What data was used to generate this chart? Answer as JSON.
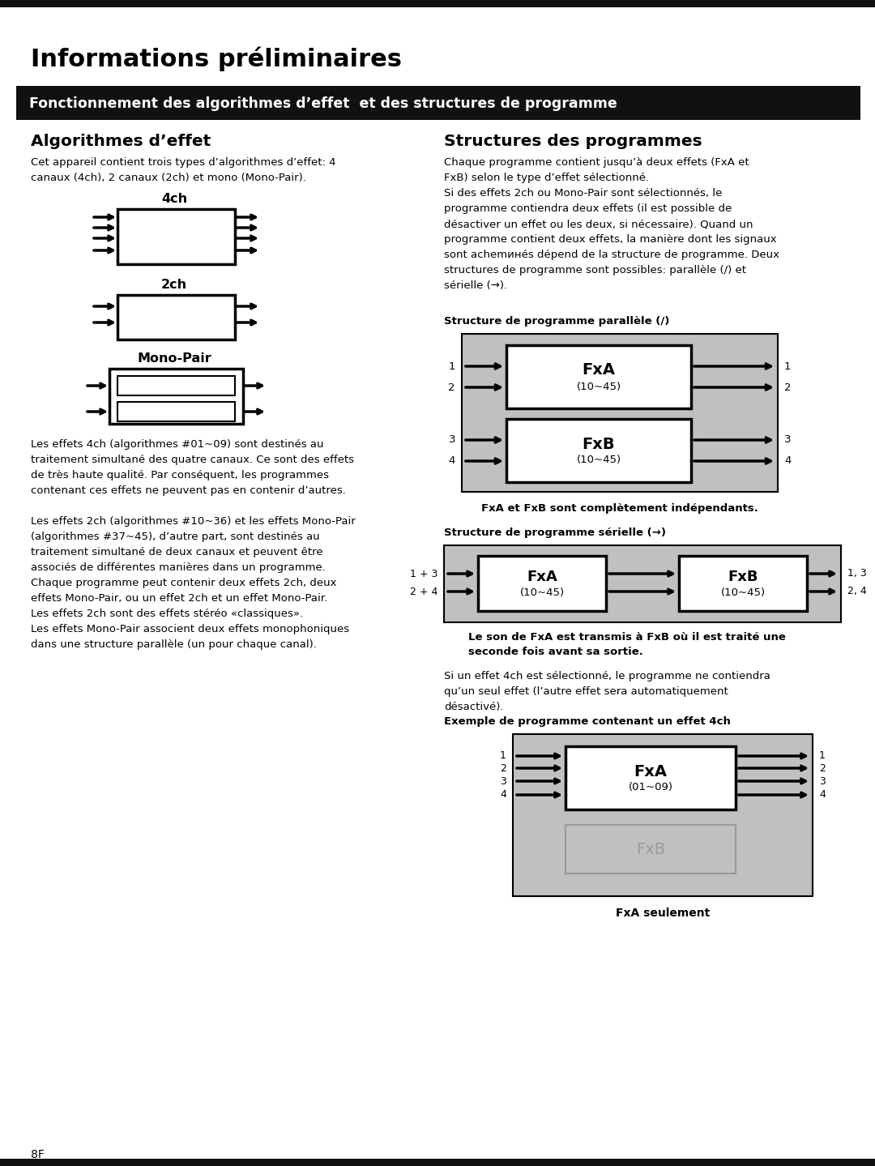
{
  "page_bg": "#ffffff",
  "top_bar_color": "#111111",
  "section_bar_color": "#111111",
  "gray_box": "#c0c0c0",
  "title_text": "Informations préliminaires",
  "section_title": "Fonctionnement des algorithmes d’effet  et des structures de programme",
  "left_heading": "Algorithmes d’effet",
  "right_heading": "Structures des programmes",
  "left_body1": "Cet appareil contient trois types d’algorithmes d’effet: 4\ncanaux (4ch), 2 canaux (2ch) et mono (Mono-Pair).",
  "diagram_4ch": "4ch",
  "diagram_2ch": "2ch",
  "diagram_monopair": "Mono-Pair",
  "left_body2": "Les effets 4ch (algorithmes #01~09) sont destinés au\ntraitement simultané des quatre canaux. Ce sont des effets\nde très haute qualité. Par conséquent, les programmes\ncontenant ces effets ne peuvent pas en contenir d’autres.\n\nLes effets 2ch (algorithmes #10~36) et les effets Mono-Pair\n(algorithmes #37~45), d’autre part, sont destinés au\ntraitement simultané de deux canaux et peuvent être\nassociés de différentes manières dans un programme.\nChaque programme peut contenir deux effets 2ch, deux\neffets Mono-Pair, ou un effet 2ch et un effet Mono-Pair.\nLes effets 2ch sont des effets stéréo «classiques».\nLes effets Mono-Pair associent deux effets monophoniques\ndans une structure parallèle (un pour chaque canal).",
  "right_body1": "Chaque programme contient jusqu’à deux effets (FxA et\nFxB) selon le type d’effet sélectionné.\nSi des effets 2ch ou Mono-Pair sont sélectionnés, le\nprogramme contiendra deux effets (il est possible de\ndésactiver un effet ou les deux, si nécessaire). Quand un\nprogramme contient deux effets, la manière dont les signaux\nsont achemинés dépend de la structure de programme. Deux\nstructures de programme sont possibles: parallèle (/) et\nsérielle (→).",
  "parallel_label": "Structure de programme parallèle (/)",
  "parallel_caption": "FxA et FxB sont complètement indépendants.",
  "serial_label": "Structure de programme sérielle (→)",
  "serial_caption": "Le son de FxA est transmis à FxB où il est traité une\nseconde fois avant sa sortie.",
  "right_body2": "Si un effet 4ch est sélectionné, le programme ne contiendra\nqu’un seul effet (l’autre effet sera automatiquement\ndésactivé).",
  "example_label": "Exemple de programme contenant un effet 4ch",
  "example_caption": "FxA seulement",
  "page_number": "8F"
}
